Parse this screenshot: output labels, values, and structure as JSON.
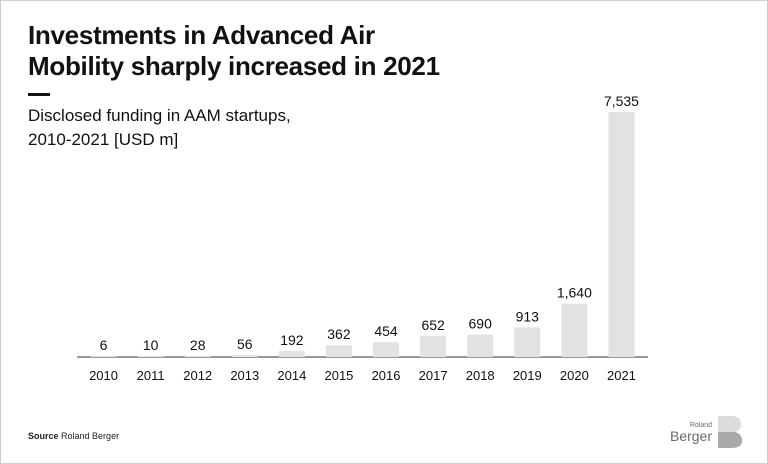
{
  "header": {
    "title_line1": "Investments in Advanced Air",
    "title_line2": "Mobility sharply increased in 2021",
    "subtitle_line1": "Disclosed funding in AAM startups,",
    "subtitle_line2": "2010-2021 [USD m]"
  },
  "footer": {
    "source_label": "Source",
    "source_value": "Roland Berger"
  },
  "logo": {
    "small_text": "Roland",
    "big_text": "Berger",
    "mark": "B"
  },
  "colors": {
    "bar": "#e2e2e2",
    "baseline": "#333333",
    "text": "#111111"
  },
  "chart_data": {
    "type": "bar",
    "title": "Investments in Advanced Air Mobility sharply increased in 2021",
    "subtitle": "Disclosed funding in AAM startups, 2010-2021 [USD m]",
    "categories": [
      "2010",
      "2011",
      "2012",
      "2013",
      "2014",
      "2015",
      "2016",
      "2017",
      "2018",
      "2019",
      "2020",
      "2021"
    ],
    "values": [
      6,
      10,
      28,
      56,
      192,
      362,
      454,
      652,
      690,
      913,
      1640,
      7535
    ],
    "labels": [
      "6",
      "10",
      "28",
      "56",
      "192",
      "362",
      "454",
      "652",
      "690",
      "913",
      "1,640",
      "7,535"
    ],
    "xlabel": "",
    "ylabel": "",
    "ylim": [
      0,
      7535
    ],
    "grid": false,
    "legend": "none"
  }
}
